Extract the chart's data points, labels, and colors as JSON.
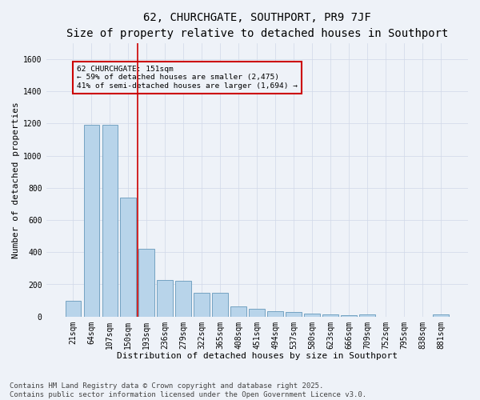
{
  "title": "62, CHURCHGATE, SOUTHPORT, PR9 7JF",
  "subtitle": "Size of property relative to detached houses in Southport",
  "xlabel": "Distribution of detached houses by size in Southport",
  "ylabel": "Number of detached properties",
  "categories": [
    "21sqm",
    "64sqm",
    "107sqm",
    "150sqm",
    "193sqm",
    "236sqm",
    "279sqm",
    "322sqm",
    "365sqm",
    "408sqm",
    "451sqm",
    "494sqm",
    "537sqm",
    "580sqm",
    "623sqm",
    "666sqm",
    "709sqm",
    "752sqm",
    "795sqm",
    "838sqm",
    "881sqm"
  ],
  "values": [
    100,
    1190,
    1190,
    740,
    420,
    225,
    220,
    150,
    150,
    65,
    50,
    35,
    30,
    20,
    15,
    8,
    15,
    0,
    0,
    0,
    15
  ],
  "bar_color": "#b8d4ea",
  "bar_edge_color": "#6699bb",
  "background_color": "#eef2f8",
  "grid_color": "#d0d8e8",
  "vline_color": "#cc0000",
  "annotation_text": "62 CHURCHGATE: 151sqm\n← 59% of detached houses are smaller (2,475)\n41% of semi-detached houses are larger (1,694) →",
  "annotation_box_edgecolor": "#cc0000",
  "ylim": [
    0,
    1700
  ],
  "yticks": [
    0,
    200,
    400,
    600,
    800,
    1000,
    1200,
    1400,
    1600
  ],
  "footer_line1": "Contains HM Land Registry data © Crown copyright and database right 2025.",
  "footer_line2": "Contains public sector information licensed under the Open Government Licence v3.0.",
  "title_fontsize": 10,
  "axis_label_fontsize": 8,
  "tick_fontsize": 7,
  "footer_fontsize": 6.5
}
